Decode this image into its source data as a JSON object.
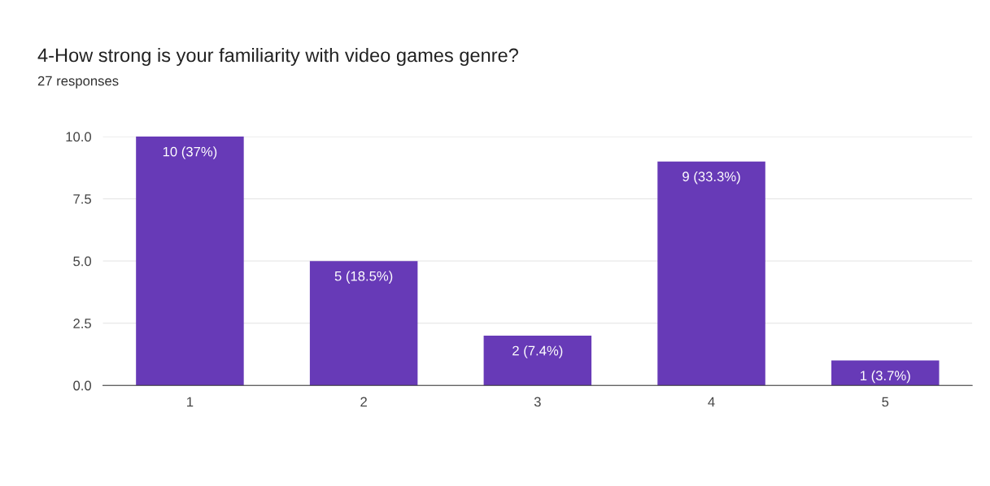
{
  "chart_data": {
    "type": "bar",
    "title": "4-How strong is your familiarity with video games genre?",
    "subtitle": "27 responses",
    "categories": [
      "1",
      "2",
      "3",
      "4",
      "5"
    ],
    "values": [
      10,
      5,
      2,
      9,
      1
    ],
    "value_labels": [
      "10 (37%)",
      "5 (18.5%)",
      "2 (7.4%)",
      "9 (33.3%)",
      "1 (3.7%)"
    ],
    "color": "#673ab7",
    "ylim": [
      0,
      10
    ],
    "yticks": [
      {
        "value": 0,
        "label": "0.0"
      },
      {
        "value": 2.5,
        "label": "2.5"
      },
      {
        "value": 5,
        "label": "5.0"
      },
      {
        "value": 7.5,
        "label": "7.5"
      },
      {
        "value": 10,
        "label": "10.0"
      }
    ],
    "grid": "y"
  }
}
